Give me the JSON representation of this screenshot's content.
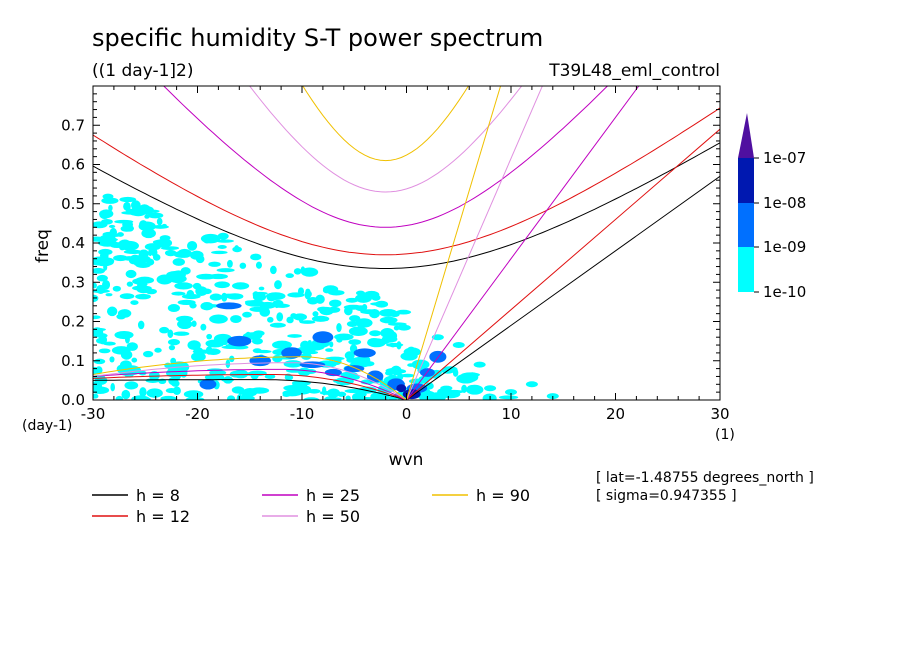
{
  "header": {
    "title": "specific humidity S-T power spectrum",
    "units": "((1 day-1]2)",
    "experiment": "T39L48_eml_control"
  },
  "info": {
    "lat": "[ lat=-1.48755 degrees_north ]",
    "sigma": "[ sigma=0.947355 ]"
  },
  "colors": {
    "h8": "#000000",
    "h12": "#e01010",
    "h25": "#c000c0",
    "h50": "#e090e0",
    "h90": "#f0c000",
    "lvl_1e10": "#00ffff",
    "lvl_1e9": "#0070ff",
    "lvl_1e8": "#0018b0",
    "lvl_1e7": "#5010a0"
  },
  "colorbar": {
    "labels": [
      "1e-10",
      "1e-09",
      "1e-08",
      "1e-07"
    ]
  },
  "chart_data": {
    "type": "contour",
    "xlabel": "wvn",
    "ylabel": "freq",
    "x_unit": "(1)",
    "y_unit": "(day-1)",
    "xlim": [
      -30,
      30
    ],
    "ylim": [
      0,
      0.8
    ],
    "x_ticks": [
      "-30",
      "-20",
      "-10",
      "0",
      "10",
      "20",
      "30"
    ],
    "y_ticks": [
      "0.0",
      "0.1",
      "0.2",
      "0.3",
      "0.4",
      "0.5",
      "0.6",
      "0.7"
    ],
    "contour_levels": [
      "1e-10",
      "1e-09",
      "1e-08",
      "1e-07"
    ],
    "legend": [
      {
        "label": "h =  8",
        "h": 8,
        "color": "#000000"
      },
      {
        "label": "h = 12",
        "h": 12,
        "color": "#e01010"
      },
      {
        "label": "h = 25",
        "h": 25,
        "color": "#c000c0"
      },
      {
        "label": "h = 50",
        "h": 50,
        "color": "#e090e0"
      },
      {
        "label": "h = 90",
        "h": 90,
        "color": "#f0c000"
      }
    ],
    "dispersion_curves": [
      {
        "h": 8,
        "eig_vertex": {
          "x": -2,
          "y": 0.335
        },
        "eig_at_minus30": 0.64,
        "kelvin_at_30": 0.57,
        "mrg_at_minus30": 0.05
      },
      {
        "h": 12,
        "eig_vertex": {
          "x": -2,
          "y": 0.37
        },
        "eig_at_minus30": 0.77,
        "kelvin_at_30": 0.69,
        "mrg_at_minus30": 0.055
      },
      {
        "h": 25,
        "eig_vertex": {
          "x": -2,
          "y": 0.44
        },
        "kelvin_at_20": 0.72,
        "mrg_at_minus30": 0.06
      },
      {
        "h": 50,
        "eig_vertex": {
          "x": -2,
          "y": 0.53
        },
        "kelvin_at_13": 0.8,
        "mrg_at_minus30": 0.06
      },
      {
        "h": 90,
        "eig_vertex": {
          "x": -2,
          "y": 0.61
        },
        "kelvin_at_9": 0.8,
        "mrg_at_minus30": 0.065
      }
    ],
    "shaded_regions": [
      {
        "level": "1e-10",
        "description_region": {
          "x": [
            -30,
            13
          ],
          "y": [
            0,
            0.55
          ]
        }
      },
      {
        "level": "1e-09",
        "description_region": {
          "x": [
            -18,
            5
          ],
          "y": [
            0,
            0.25
          ]
        }
      },
      {
        "level": "1e-08",
        "description_region": {
          "x": [
            -1,
            2
          ],
          "y": [
            0,
            0.04
          ]
        }
      }
    ]
  }
}
